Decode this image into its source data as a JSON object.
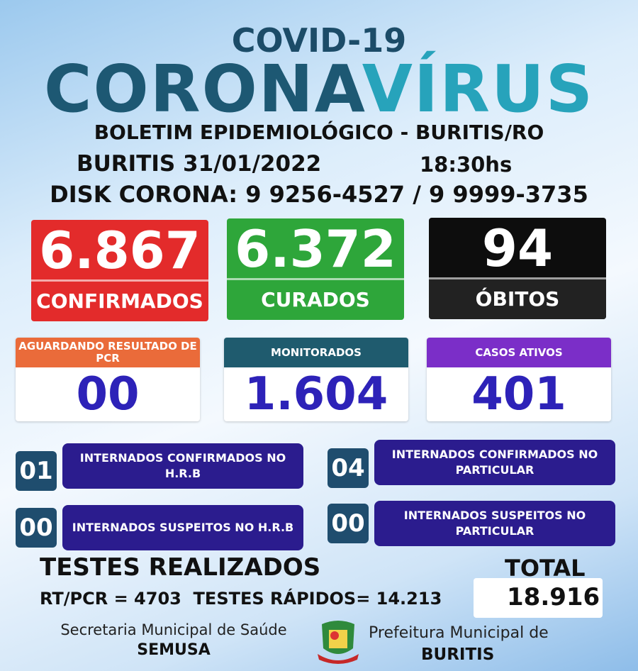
{
  "header": {
    "covid": "COVID-19",
    "corona_a": "CORONA",
    "corona_b": "VÍRUS",
    "boletim": "BOLETIM EPIDEMIOLÓGICO - BURITIS/RO",
    "date": "BURITIS 31/01/2022",
    "time": "18:30hs",
    "disk": "DISK CORONA: 9 9256-4527 / 9 9999-3735"
  },
  "main_stats": [
    {
      "value": "6.867",
      "label": "CONFIRMADOS",
      "color": "#e32b2b"
    },
    {
      "value": "6.372",
      "label": "CURADOS",
      "color": "#2ea63a"
    },
    {
      "value": "94",
      "label": "ÓBITOS",
      "color": "#0d0d0d"
    }
  ],
  "secondary_stats": [
    {
      "label": "AGUARDANDO RESULTADO DE PCR",
      "value": "00",
      "color": "#ea6b3a"
    },
    {
      "label": "MONITORADOS",
      "value": "1.604",
      "color": "#1f5b6e"
    },
    {
      "label": "CASOS ATIVOS",
      "value": "401",
      "color": "#7b2ec8"
    }
  ],
  "internados": [
    {
      "count": "01",
      "label": "INTERNADOS CONFIRMADOS NO H.R.B"
    },
    {
      "count": "04",
      "label": "INTERNADOS CONFIRMADOS NO PARTICULAR"
    },
    {
      "count": "00",
      "label": "INTERNADOS SUSPEITOS NO H.R.B"
    },
    {
      "count": "00",
      "label": "INTERNADOS SUSPEITOS NO PARTICULAR"
    }
  ],
  "tests": {
    "title": "TESTES REALIZADOS",
    "detail": "RT/PCR = 4703  TESTES RÁPIDOS= 14.213",
    "total_label": "TOTAL",
    "total": "18.916"
  },
  "footer": {
    "secretaria": "Secretaria Municipal de Saúde",
    "semusa": "SEMUSA",
    "prefeitura": "Prefeitura Municipal de",
    "buritis": "BURITIS",
    "logo_icon": "municipal-coat-of-arms"
  }
}
